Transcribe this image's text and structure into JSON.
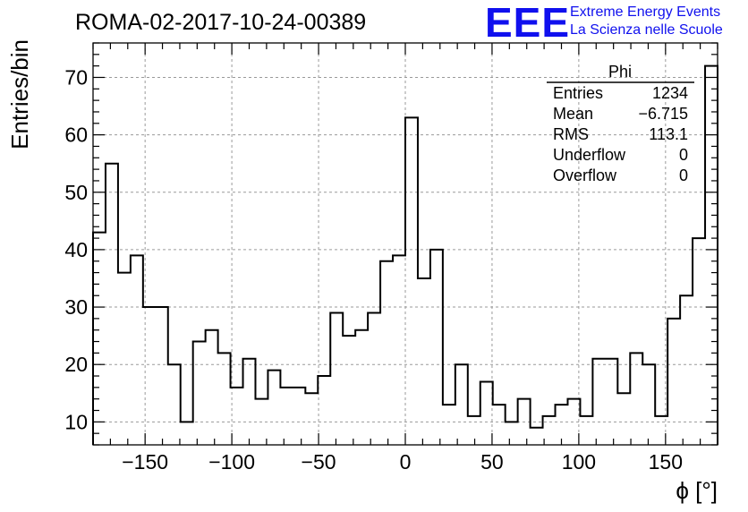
{
  "chart_data": {
    "type": "histogram",
    "title": "ROMA-02-2017-10-24-00389",
    "xlabel": "ϕ [°]",
    "ylabel": "Entries/bin",
    "xlim": [
      -180,
      180
    ],
    "ylim": [
      6,
      76
    ],
    "bin_width": 7.2,
    "bin_edges_start": -180,
    "values": [
      43,
      55,
      36,
      39,
      30,
      30,
      20,
      10,
      24,
      26,
      22,
      16,
      21,
      14,
      19,
      16,
      16,
      15,
      18,
      29,
      25,
      26,
      29,
      38,
      39,
      63,
      35,
      40,
      13,
      20,
      11,
      17,
      13,
      10,
      14,
      9,
      11,
      13,
      14,
      11,
      21,
      21,
      15,
      22,
      20,
      11,
      28,
      32,
      42,
      72
    ],
    "x_ticks": [
      "−150",
      "−100",
      "−50",
      "0",
      "50",
      "100",
      "150"
    ],
    "x_tick_values": [
      -150,
      -100,
      -50,
      0,
      50,
      100,
      150
    ],
    "y_ticks": [
      "10",
      "20",
      "30",
      "40",
      "50",
      "60",
      "70"
    ],
    "y_tick_values": [
      10,
      20,
      30,
      40,
      50,
      60,
      70
    ],
    "grid": true,
    "line_color": "#000000",
    "stats": {
      "title": "Phi",
      "rows": [
        {
          "label": "Entries",
          "value": "1234"
        },
        {
          "label": "Mean",
          "value": "−6.715"
        },
        {
          "label": "RMS",
          "value": "113.1"
        },
        {
          "label": "Underflow",
          "value": "0"
        },
        {
          "label": "Overflow",
          "value": "0"
        }
      ]
    }
  },
  "logo": {
    "mark": "EEE",
    "line1": "Extreme Energy Events",
    "line2": "La Scienza nelle Scuole",
    "color": "#1010ee"
  }
}
